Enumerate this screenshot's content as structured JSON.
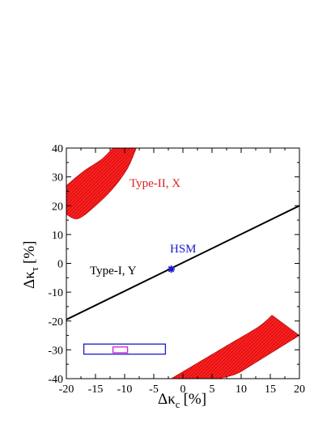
{
  "chart_data": {
    "type": "scatter",
    "title": "",
    "xlabel_main": "Δκ",
    "xlabel_sub": "c",
    "xlabel_unit": "[%]",
    "ylabel_main": "Δκ",
    "ylabel_sub": "τ",
    "ylabel_unit": "[%]",
    "xlim": [
      -20,
      20
    ],
    "ylim": [
      -40,
      40
    ],
    "x_ticks": [
      -20,
      -15,
      -10,
      -5,
      0,
      5,
      10,
      15,
      20
    ],
    "y_ticks": [
      -40,
      -30,
      -20,
      -10,
      0,
      10,
      20,
      30,
      40
    ],
    "grid": false,
    "colors": {
      "type2_region": "#ff2020",
      "type2_hatch": "#a00000",
      "type1_line": "#000000",
      "hsm": "#1a1acc",
      "box_outer": "#1a1acc",
      "box_inner": "#d020d0"
    },
    "annotations": {
      "type2_label": "Type-II, X",
      "type1_label": "Type-I, Y",
      "hsm_label": "HSM"
    },
    "type1_line": {
      "x": [
        -20,
        20
      ],
      "y": [
        -19.5,
        20
      ]
    },
    "hsm_point": {
      "x": -2,
      "y": -2
    },
    "type2_region_upper": {
      "outer": [
        [
          -20,
          27
        ],
        [
          -17,
          32
        ],
        [
          -14,
          36
        ],
        [
          -12,
          40
        ]
      ],
      "inner": [
        [
          -8,
          40
        ],
        [
          -9.5,
          33
        ],
        [
          -12,
          26
        ],
        [
          -15,
          20
        ],
        [
          -18,
          15.5
        ],
        [
          -20,
          17
        ]
      ]
    },
    "type2_region_lower": {
      "outer": [
        [
          -2,
          -40
        ],
        [
          3,
          -34
        ],
        [
          8,
          -28
        ],
        [
          13,
          -22
        ],
        [
          15.3,
          -18
        ]
      ],
      "inner": [
        [
          20,
          -25
        ],
        [
          16,
          -30
        ],
        [
          12,
          -35
        ],
        [
          9,
          -38.5
        ],
        [
          6,
          -40
        ]
      ]
    },
    "box_outer": {
      "x": [
        -17,
        -3
      ],
      "y": [
        -31.5,
        -28
      ]
    },
    "box_inner": {
      "x": [
        -12,
        -9.5
      ],
      "y": [
        -31,
        -29
      ]
    }
  }
}
